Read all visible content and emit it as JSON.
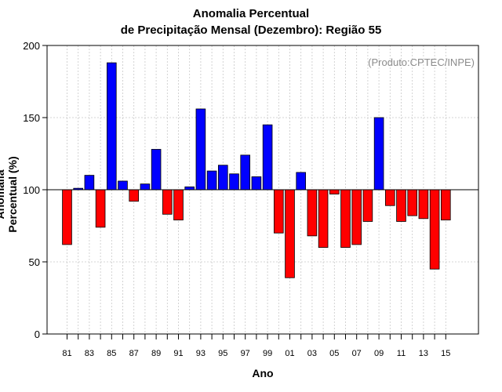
{
  "chart_data": {
    "type": "bar",
    "title": "Anomalia Percentual",
    "subtitle": "de Precipitação Mensal (Dezembro): Região 55",
    "xlabel": "Ano",
    "ylabel": "Anomalia Percentual (%)",
    "annotation": "(Produto:CPTEC/INPE)",
    "ylim": [
      0,
      200
    ],
    "yticks": [
      "0",
      "50",
      "100",
      "150",
      "200"
    ],
    "baseline": 100,
    "grid": true,
    "colors": {
      "above": "#0000ff",
      "below": "#ff0000",
      "edge": "#000000",
      "grid": "#c8c8c8"
    },
    "categories": [
      "1981",
      "1982",
      "1983",
      "1984",
      "1985",
      "1986",
      "1987",
      "1988",
      "1989",
      "1990",
      "1991",
      "1992",
      "1993",
      "1994",
      "1995",
      "1996",
      "1997",
      "1998",
      "1999",
      "2000",
      "2001",
      "2002",
      "2003",
      "2004",
      "2005",
      "2006",
      "2007",
      "2008",
      "2009",
      "2010",
      "2011",
      "2012",
      "2013",
      "2014",
      "2015"
    ],
    "tick_labels": [
      "81",
      "83",
      "85",
      "87",
      "89",
      "91",
      "93",
      "95",
      "97",
      "99",
      "01",
      "03",
      "05",
      "07",
      "09",
      "11",
      "13",
      "15"
    ],
    "values": [
      62,
      101,
      110,
      74,
      188,
      106,
      92,
      104,
      128,
      83,
      79,
      102,
      156,
      113,
      117,
      111,
      124,
      109,
      145,
      70,
      39,
      112,
      68,
      60,
      97,
      60,
      62,
      78,
      150,
      89,
      78,
      82,
      80,
      45,
      79
    ]
  }
}
